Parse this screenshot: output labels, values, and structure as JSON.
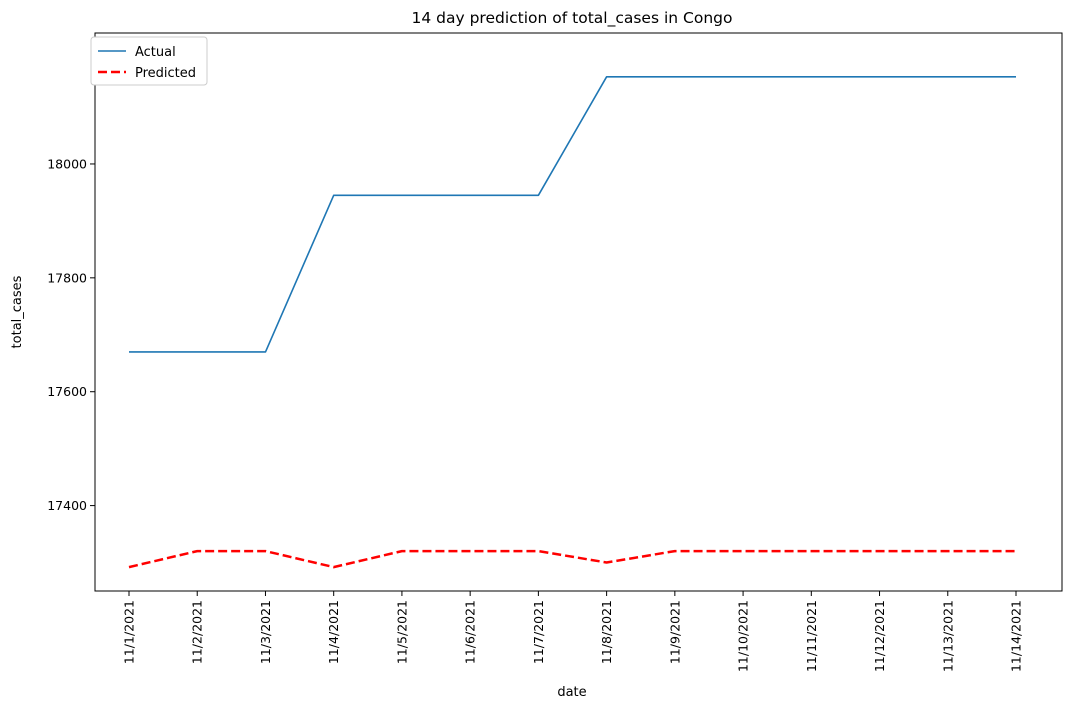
{
  "chart_data": {
    "type": "line",
    "title": "14 day prediction of total_cases in Congo",
    "xlabel": "date",
    "ylabel": "total_cases",
    "categories": [
      "11/1/2021",
      "11/2/2021",
      "11/3/2021",
      "11/4/2021",
      "11/5/2021",
      "11/6/2021",
      "11/7/2021",
      "11/8/2021",
      "11/9/2021",
      "11/10/2021",
      "11/11/2021",
      "11/12/2021",
      "11/13/2021",
      "11/14/2021"
    ],
    "ylim": [
      17250,
      18230
    ],
    "yticks": [
      17400,
      17600,
      17800,
      18000
    ],
    "grid": false,
    "legend_position": "top-left",
    "series": [
      {
        "name": "Actual",
        "color": "#1f77b4",
        "style": "solid",
        "values": [
          17670,
          17670,
          17670,
          17945,
          17945,
          17945,
          17945,
          18153,
          18153,
          18153,
          18153,
          18153,
          18153,
          18153
        ]
      },
      {
        "name": "Predicted",
        "color": "#ff0000",
        "style": "dashed",
        "values": [
          17292,
          17320,
          17320,
          17292,
          17320,
          17320,
          17320,
          17300,
          17320,
          17320,
          17320,
          17320,
          17320,
          17320
        ]
      }
    ]
  }
}
